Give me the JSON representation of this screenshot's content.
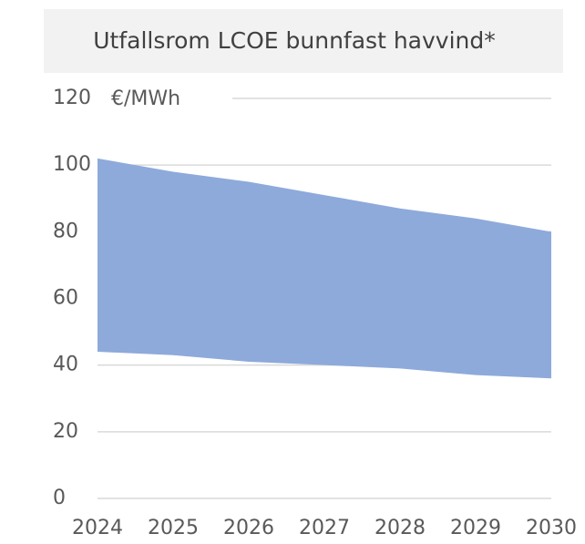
{
  "chart_data": {
    "type": "area_range",
    "title": "Utfallsrom LCOE bunnfast havvind*",
    "y_unit": "€/MWh",
    "x": [
      2024,
      2025,
      2026,
      2027,
      2028,
      2029,
      2030
    ],
    "low": [
      44,
      43,
      41,
      40,
      39,
      37,
      36
    ],
    "high": [
      102,
      98,
      95,
      91,
      87,
      84,
      80
    ],
    "color": "#8eaadb",
    "xlim": [
      2024,
      2030
    ],
    "ylim": [
      0,
      120
    ],
    "yticks": [
      0,
      20,
      40,
      60,
      80,
      100,
      120
    ],
    "grid": true
  }
}
